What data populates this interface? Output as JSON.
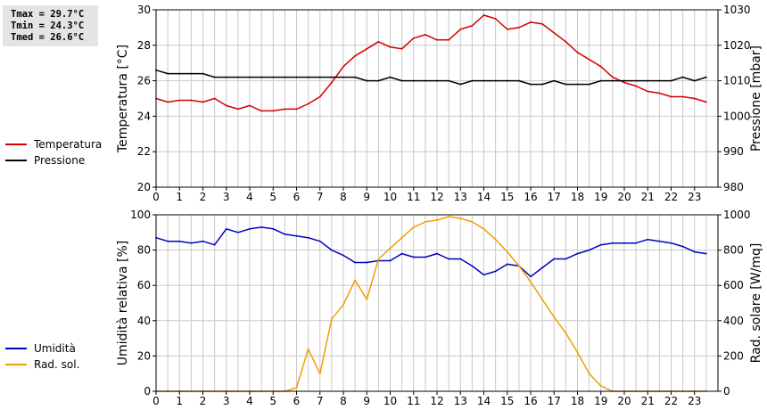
{
  "stats": {
    "tmax": "Tmax = 29.7°C",
    "tmin": "Tmin = 24.3°C",
    "tmed": "Tmed = 26.6°C"
  },
  "colors": {
    "temperature": "#d40000",
    "pressure": "#000000",
    "humidity": "#0000c0",
    "solar": "#f0a000",
    "grid": "#c8c8c8"
  },
  "chart_data": [
    {
      "type": "line",
      "x_ticks": [
        "0",
        "1",
        "2",
        "3",
        "4",
        "5",
        "6",
        "7",
        "8",
        "9",
        "10",
        "11",
        "12",
        "13",
        "14",
        "15",
        "16",
        "17",
        "18",
        "19",
        "20",
        "21",
        "22",
        "23"
      ],
      "xlim": [
        0,
        24
      ],
      "y_left": {
        "label": "Temperatura [°C]",
        "ticks": [
          "20",
          "22",
          "24",
          "26",
          "28",
          "30"
        ],
        "lim": [
          20,
          30
        ]
      },
      "y_right": {
        "label": "Pressione [mbar]",
        "ticks": [
          "980",
          "990",
          "1000",
          "1010",
          "1020",
          "1030"
        ],
        "lim": [
          980,
          1030
        ]
      },
      "grid": true,
      "legend_position": "left",
      "series": [
        {
          "name": "Temperatura",
          "axis": "left",
          "x": [
            0,
            0.5,
            1,
            1.5,
            2,
            2.5,
            3,
            3.5,
            4,
            4.5,
            5,
            5.5,
            6,
            6.5,
            7,
            7.5,
            8,
            8.5,
            9,
            9.5,
            10,
            10.5,
            11,
            11.5,
            12,
            12.5,
            13,
            13.5,
            14,
            14.5,
            15,
            15.5,
            16,
            16.5,
            17,
            17.5,
            18,
            18.5,
            19,
            19.5,
            20,
            20.5,
            21,
            21.5,
            22,
            22.5,
            23,
            23.5
          ],
          "values": [
            25.0,
            24.8,
            24.9,
            24.9,
            24.8,
            25.0,
            24.6,
            24.4,
            24.6,
            24.3,
            24.3,
            24.4,
            24.4,
            24.7,
            25.1,
            25.9,
            26.8,
            27.4,
            27.8,
            28.2,
            27.9,
            27.8,
            28.4,
            28.6,
            28.3,
            28.3,
            28.9,
            29.1,
            29.7,
            29.5,
            28.9,
            29.0,
            29.3,
            29.2,
            28.7,
            28.2,
            27.6,
            27.2,
            26.8,
            26.2,
            25.9,
            25.7,
            25.4,
            25.3,
            25.1,
            25.1,
            25.0,
            24.8
          ]
        },
        {
          "name": "Pressione",
          "axis": "right",
          "x": [
            0,
            0.5,
            1,
            1.5,
            2,
            2.5,
            3,
            3.5,
            4,
            4.5,
            5,
            5.5,
            6,
            6.5,
            7,
            7.5,
            8,
            8.5,
            9,
            9.5,
            10,
            10.5,
            11,
            11.5,
            12,
            12.5,
            13,
            13.5,
            14,
            14.5,
            15,
            15.5,
            16,
            16.5,
            17,
            17.5,
            18,
            18.5,
            19,
            19.5,
            20,
            20.5,
            21,
            21.5,
            22,
            22.5,
            23,
            23.5
          ],
          "values": [
            1013,
            1012,
            1012,
            1012,
            1012,
            1011,
            1011,
            1011,
            1011,
            1011,
            1011,
            1011,
            1011,
            1011,
            1011,
            1011,
            1011,
            1011,
            1010,
            1010,
            1011,
            1010,
            1010,
            1010,
            1010,
            1010,
            1009,
            1010,
            1010,
            1010,
            1010,
            1010,
            1009,
            1009,
            1010,
            1009,
            1009,
            1009,
            1010,
            1010,
            1010,
            1010,
            1010,
            1010,
            1010,
            1011,
            1010,
            1011
          ]
        }
      ]
    },
    {
      "type": "line",
      "x_ticks": [
        "0",
        "1",
        "2",
        "3",
        "4",
        "5",
        "6",
        "7",
        "8",
        "9",
        "10",
        "11",
        "12",
        "13",
        "14",
        "15",
        "16",
        "17",
        "18",
        "19",
        "20",
        "21",
        "22",
        "23"
      ],
      "xlim": [
        0,
        24
      ],
      "y_left": {
        "label": "Umidità relativa [%]",
        "ticks": [
          "0",
          "20",
          "40",
          "60",
          "80",
          "100"
        ],
        "lim": [
          0,
          100
        ]
      },
      "y_right": {
        "label": "Rad. solare [W/mq]",
        "ticks": [
          "0",
          "200",
          "400",
          "600",
          "800",
          "1000"
        ],
        "lim": [
          0,
          1000
        ]
      },
      "grid": true,
      "legend_position": "left",
      "series": [
        {
          "name": "Umidità",
          "axis": "left",
          "x": [
            0,
            0.5,
            1,
            1.5,
            2,
            2.5,
            3,
            3.5,
            4,
            4.5,
            5,
            5.5,
            6,
            6.5,
            7,
            7.5,
            8,
            8.5,
            9,
            9.5,
            10,
            10.5,
            11,
            11.5,
            12,
            12.5,
            13,
            13.5,
            14,
            14.5,
            15,
            15.5,
            16,
            16.5,
            17,
            17.5,
            18,
            18.5,
            19,
            19.5,
            20,
            20.5,
            21,
            21.5,
            22,
            22.5,
            23,
            23.5
          ],
          "values": [
            87,
            85,
            85,
            84,
            85,
            83,
            92,
            90,
            92,
            93,
            92,
            89,
            88,
            87,
            85,
            80,
            77,
            73,
            73,
            74,
            74,
            78,
            76,
            76,
            78,
            75,
            75,
            71,
            66,
            68,
            72,
            71,
            65,
            70,
            75,
            75,
            78,
            80,
            83,
            84,
            84,
            84,
            86,
            85,
            84,
            82,
            79,
            78
          ]
        },
        {
          "name": "Rad. sol.",
          "axis": "right",
          "x": [
            0,
            0.5,
            1,
            1.5,
            2,
            2.5,
            3,
            3.5,
            4,
            4.5,
            5,
            5.5,
            6,
            6.5,
            7,
            7.5,
            8,
            8.5,
            9,
            9.5,
            10,
            10.5,
            11,
            11.5,
            12,
            12.5,
            13,
            13.5,
            14,
            14.5,
            15,
            15.5,
            16,
            16.5,
            17,
            17.5,
            18,
            18.5,
            19,
            19.5,
            20,
            20.5,
            21,
            21.5,
            22,
            22.5,
            23,
            23.5
          ],
          "values": [
            0,
            0,
            0,
            0,
            0,
            0,
            0,
            0,
            0,
            0,
            0,
            0,
            20,
            240,
            100,
            410,
            490,
            630,
            520,
            750,
            810,
            870,
            930,
            960,
            970,
            990,
            980,
            960,
            920,
            860,
            790,
            710,
            620,
            520,
            420,
            330,
            220,
            100,
            30,
            0,
            0,
            0,
            0,
            0,
            0,
            0,
            0,
            0
          ]
        }
      ]
    }
  ]
}
